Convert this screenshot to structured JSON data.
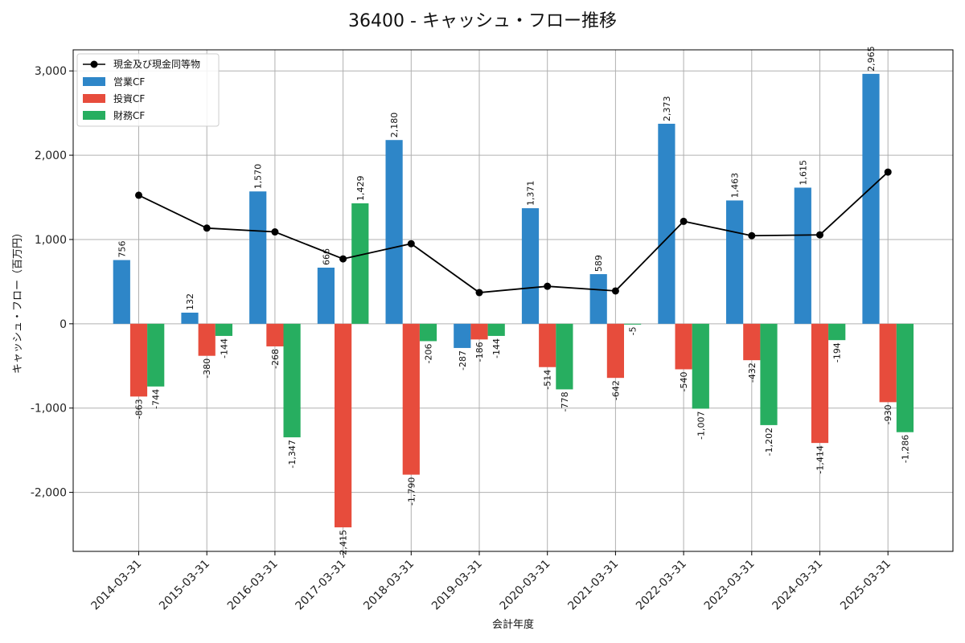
{
  "chart_data": {
    "type": "bar",
    "title": "36400 - キャッシュ・フロー推移",
    "xlabel": "会計年度",
    "ylabel": "キャッシュ・フロー（百万円）",
    "ylim": [
      -2700,
      3250
    ],
    "yticks": [
      -2000,
      -1000,
      0,
      1000,
      2000,
      3000
    ],
    "ytick_labels": [
      "-2,000",
      "-1,000",
      "0",
      "1,000",
      "2,000",
      "3,000"
    ],
    "grid": true,
    "legend_position": "top-left",
    "categories": [
      "2014-03-31",
      "2015-03-31",
      "2016-03-31",
      "2017-03-31",
      "2018-03-31",
      "2019-03-31",
      "2020-03-31",
      "2021-03-31",
      "2022-03-31",
      "2023-03-31",
      "2024-03-31",
      "2025-03-31"
    ],
    "series": [
      {
        "name": "営業CF",
        "kind": "bar",
        "color": "#2e86c8",
        "values": [
          756,
          132,
          1570,
          666,
          2180,
          -287,
          1371,
          589,
          2373,
          1463,
          1615,
          2965
        ],
        "labels": [
          "756",
          "132",
          "1,570",
          "666",
          "2,180",
          "-287",
          "1,371",
          "589",
          "2,373",
          "1,463",
          "1,615",
          "2,965"
        ]
      },
      {
        "name": "投資CF",
        "kind": "bar",
        "color": "#e74c3c",
        "values": [
          -863,
          -380,
          -268,
          -2415,
          -1790,
          -186,
          -514,
          -642,
          -540,
          -432,
          -1414,
          -930
        ],
        "labels": [
          "-863",
          "-380",
          "-268",
          "-2,415",
          "-1,790",
          "-186",
          "-514",
          "-642",
          "-540",
          "-432",
          "-1,414",
          "-930"
        ]
      },
      {
        "name": "財務CF",
        "kind": "bar",
        "color": "#27ae60",
        "values": [
          -744,
          -144,
          -1347,
          1429,
          -206,
          -144,
          -778,
          -5,
          -1007,
          -1202,
          -194,
          -1286
        ],
        "labels": [
          "-744",
          "-144",
          "-1,347",
          "1,429",
          "-206",
          "-144",
          "-778",
          "-5",
          "-1,007",
          "-1,202",
          "-194",
          "-1,286"
        ]
      },
      {
        "name": "現金及び現金同等物",
        "kind": "line",
        "color": "#000000",
        "values": [
          1525,
          1135,
          1090,
          770,
          950,
          370,
          445,
          390,
          1215,
          1045,
          1055,
          1800
        ]
      }
    ]
  }
}
